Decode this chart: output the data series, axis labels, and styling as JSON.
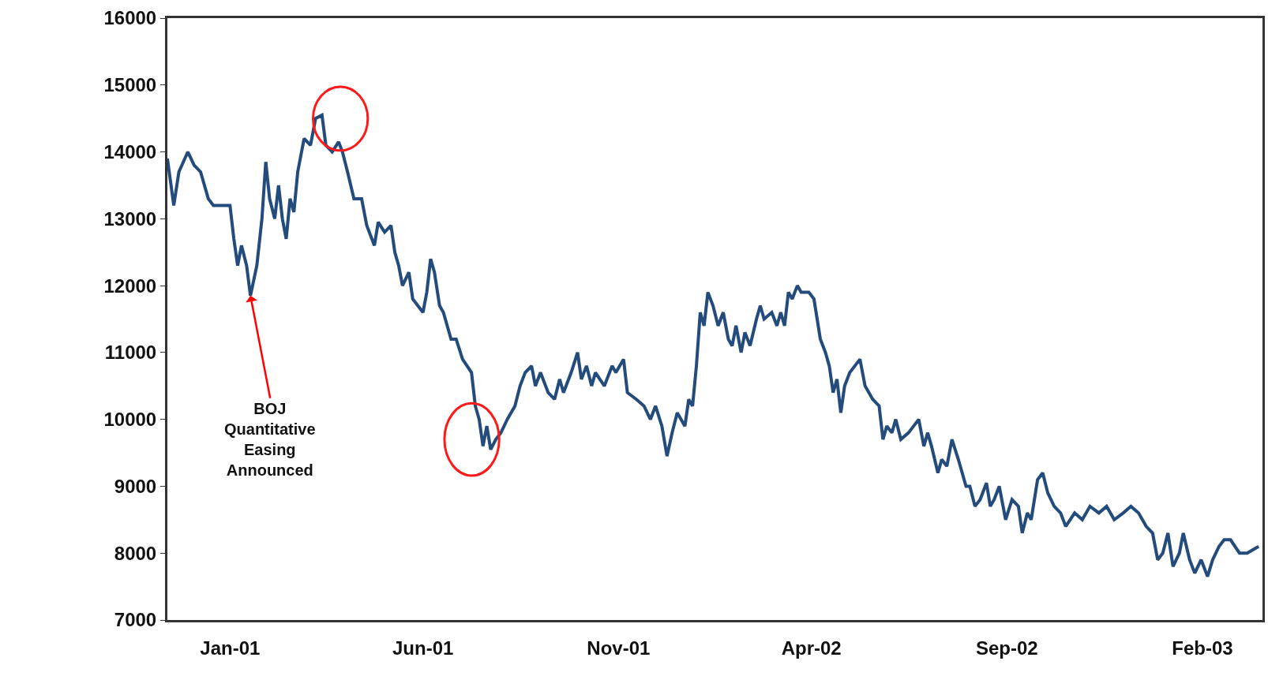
{
  "chart_data": {
    "type": "line",
    "x": [
      "2000-11-13",
      "2000-11-18",
      "2000-11-22",
      "2000-11-29",
      "2000-12-04",
      "2000-12-09",
      "2000-12-15",
      "2000-12-19",
      "2000-12-26",
      "2001-01-01",
      "2001-01-04",
      "2001-01-07",
      "2001-01-10",
      "2001-01-14",
      "2001-01-17",
      "2001-01-22",
      "2001-01-26",
      "2001-01-29",
      "2001-02-01",
      "2001-02-05",
      "2001-02-08",
      "2001-02-11",
      "2001-02-14",
      "2001-02-17",
      "2001-02-20",
      "2001-02-23",
      "2001-02-28",
      "2001-03-05",
      "2001-03-09",
      "2001-03-14",
      "2001-03-17",
      "2001-03-22",
      "2001-03-27",
      "2001-03-30",
      "2001-04-03",
      "2001-04-08",
      "2001-04-14",
      "2001-04-18",
      "2001-04-24",
      "2001-04-27",
      "2001-05-02",
      "2001-05-07",
      "2001-05-10",
      "2001-05-13",
      "2001-05-16",
      "2001-05-21",
      "2001-05-24",
      "2001-05-28",
      "2001-06-01",
      "2001-06-04",
      "2001-06-07",
      "2001-06-10",
      "2001-06-14",
      "2001-06-17",
      "2001-06-23",
      "2001-06-27",
      "2001-07-02",
      "2001-07-09",
      "2001-07-12",
      "2001-07-15",
      "2001-07-18",
      "2001-07-21",
      "2001-07-24",
      "2001-07-28",
      "2001-08-01",
      "2001-08-06",
      "2001-08-12",
      "2001-08-16",
      "2001-08-20",
      "2001-08-25",
      "2001-08-28",
      "2001-09-01",
      "2001-09-07",
      "2001-09-12",
      "2001-09-16",
      "2001-09-19",
      "2001-09-25",
      "2001-09-30",
      "2001-10-03",
      "2001-10-07",
      "2001-10-11",
      "2001-10-14",
      "2001-10-21",
      "2001-10-27",
      "2001-10-30",
      "2001-11-05",
      "2001-11-08",
      "2001-11-15",
      "2001-11-21",
      "2001-11-26",
      "2001-11-30",
      "2001-12-05",
      "2001-12-09",
      "2001-12-13",
      "2001-12-17",
      "2001-12-23",
      "2001-12-26",
      "2001-12-29",
      "2002-01-01",
      "2002-01-04",
      "2002-01-07",
      "2002-01-10",
      "2002-01-14",
      "2002-01-18",
      "2002-01-22",
      "2002-01-26",
      "2002-01-29",
      "2002-02-01",
      "2002-02-05",
      "2002-02-08",
      "2002-02-12",
      "2002-02-17",
      "2002-02-20",
      "2002-02-23",
      "2002-03-01",
      "2002-03-05",
      "2002-03-08",
      "2002-03-11",
      "2002-03-14",
      "2002-03-17",
      "2002-03-21",
      "2002-03-24",
      "2002-03-30",
      "2002-04-03",
      "2002-04-08",
      "2002-04-12",
      "2002-04-15",
      "2002-04-18",
      "2002-04-21",
      "2002-04-24",
      "2002-04-27",
      "2002-05-01",
      "2002-05-05",
      "2002-05-09",
      "2002-05-13",
      "2002-05-16",
      "2002-05-19",
      "2002-05-24",
      "2002-05-27",
      "2002-05-30",
      "2002-06-03",
      "2002-06-06",
      "2002-06-10",
      "2002-06-16",
      "2002-06-20",
      "2002-06-24",
      "2002-06-28",
      "2002-07-01",
      "2002-07-04",
      "2002-07-09",
      "2002-07-12",
      "2002-07-16",
      "2002-07-20",
      "2002-07-25",
      "2002-07-28",
      "2002-07-31",
      "2002-08-03",
      "2002-08-07",
      "2002-08-11",
      "2002-08-16",
      "2002-08-19",
      "2002-08-22",
      "2002-08-26",
      "2002-08-31",
      "2002-09-05",
      "2002-09-10",
      "2002-09-13",
      "2002-09-17",
      "2002-09-20",
      "2002-09-25",
      "2002-09-29",
      "2002-10-03",
      "2002-10-08",
      "2002-10-13",
      "2002-10-17",
      "2002-10-24",
      "2002-10-30",
      "2002-11-05",
      "2002-11-12",
      "2002-11-18",
      "2002-11-24",
      "2002-12-01",
      "2002-12-07",
      "2002-12-13",
      "2002-12-19",
      "2002-12-24",
      "2002-12-28",
      "2003-01-01",
      "2003-01-05",
      "2003-01-09",
      "2003-01-14",
      "2003-01-17",
      "2003-01-22",
      "2003-01-26",
      "2003-01-31",
      "2003-02-05",
      "2003-02-09",
      "2003-02-14",
      "2003-02-18",
      "2003-02-23",
      "2003-03-02",
      "2003-03-08",
      "2003-03-17"
    ],
    "series": [
      {
        "color": "#234b7c",
        "values": [
          13900,
          13200,
          13700,
          14000,
          13800,
          13700,
          13300,
          13200,
          13200,
          13200,
          12700,
          12300,
          12600,
          12300,
          11850,
          12300,
          13000,
          13850,
          13300,
          13000,
          13500,
          13000,
          12700,
          13300,
          13100,
          13700,
          14200,
          14100,
          14500,
          14550,
          14100,
          14000,
          14150,
          14000,
          13700,
          13300,
          13300,
          12900,
          12600,
          12950,
          12800,
          12900,
          12500,
          12300,
          12000,
          12200,
          11800,
          11700,
          11600,
          11900,
          12400,
          12200,
          11700,
          11600,
          11200,
          11200,
          10900,
          10700,
          10200,
          10000,
          9600,
          9900,
          9550,
          9700,
          9800,
          10000,
          10200,
          10500,
          10700,
          10800,
          10500,
          10700,
          10400,
          10300,
          10600,
          10400,
          10700,
          11000,
          10600,
          10800,
          10500,
          10700,
          10500,
          10800,
          10700,
          10900,
          10400,
          10300,
          10200,
          10000,
          10200,
          9900,
          9450,
          9800,
          10100,
          9900,
          10300,
          10200,
          10800,
          11600,
          11400,
          11900,
          11700,
          11400,
          11600,
          11200,
          11100,
          11400,
          11000,
          11300,
          11100,
          11500,
          11700,
          11500,
          11600,
          11400,
          11600,
          11400,
          11900,
          11800,
          12000,
          11900,
          11900,
          11800,
          11200,
          11000,
          10800,
          10400,
          10600,
          10100,
          10500,
          10700,
          10800,
          10900,
          10500,
          10400,
          10300,
          10200,
          9700,
          9900,
          9800,
          10000,
          9700,
          9800,
          9900,
          10000,
          9600,
          9800,
          9600,
          9200,
          9400,
          9300,
          9700,
          9400,
          9200,
          9000,
          9000,
          8700,
          8800,
          9050,
          8700,
          8800,
          9000,
          8500,
          8800,
          8700,
          8300,
          8600,
          8500,
          9100,
          9200,
          8900,
          8700,
          8600,
          8400,
          8600,
          8500,
          8700,
          8600,
          8700,
          8500,
          8600,
          8700,
          8600,
          8400,
          8300,
          7900,
          8000,
          8300,
          7800,
          8000,
          8300,
          7900,
          7700,
          7900,
          7650,
          7900,
          8100,
          8200,
          8200,
          8000,
          8000,
          8100
        ]
      }
    ],
    "xlim": [
      "2000-11-13",
      "2003-03-20"
    ],
    "xticks": [
      {
        "value": "2001-01-01",
        "label": "Jan-01"
      },
      {
        "value": "2001-06-01",
        "label": "Jun-01"
      },
      {
        "value": "2001-11-01",
        "label": "Nov-01"
      },
      {
        "value": "2002-04-01",
        "label": "Apr-02"
      },
      {
        "value": "2002-09-01",
        "label": "Sep-02"
      },
      {
        "value": "2003-02-01",
        "label": "Feb-03"
      }
    ],
    "ylim": [
      7000,
      16000
    ],
    "yticks": [
      7000,
      8000,
      9000,
      10000,
      11000,
      12000,
      13000,
      14000,
      15000,
      16000
    ],
    "marker": "none",
    "line_style": "solid",
    "annotations": [
      {
        "text": "BOJ\nQuantitative\nEasing\nAnnounced",
        "x": "2001-01-17",
        "y": 11850
      }
    ]
  }
}
